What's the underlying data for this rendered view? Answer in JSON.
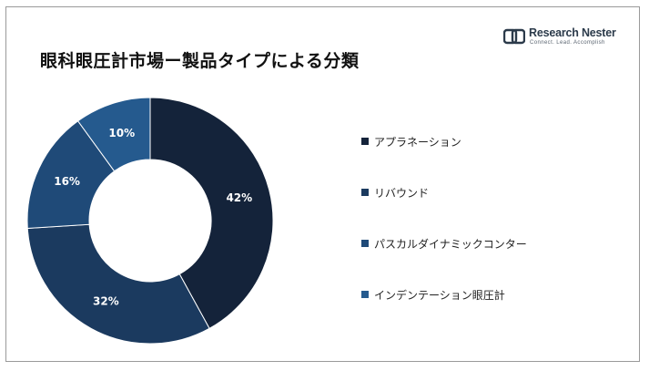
{
  "title": "眼科眼圧計市場ー製品タイプによる分類",
  "logo": {
    "name_part1": "Research",
    "name_part2": "Nester",
    "tagline": "Connect. Lead. Accomplish"
  },
  "chart_data": {
    "type": "pie",
    "donut": true,
    "categories": [
      "アプラネーション",
      "リバウンド",
      "パスカルダイナミックコンター",
      "インデンテーション眼圧計"
    ],
    "values": [
      42,
      32,
      16,
      10
    ],
    "labels": [
      "42%",
      "32%",
      "16%",
      "10%"
    ],
    "colors": [
      "#14233a",
      "#1b3a5f",
      "#1f4a78",
      "#255a8e"
    ],
    "legend_position": "right"
  }
}
